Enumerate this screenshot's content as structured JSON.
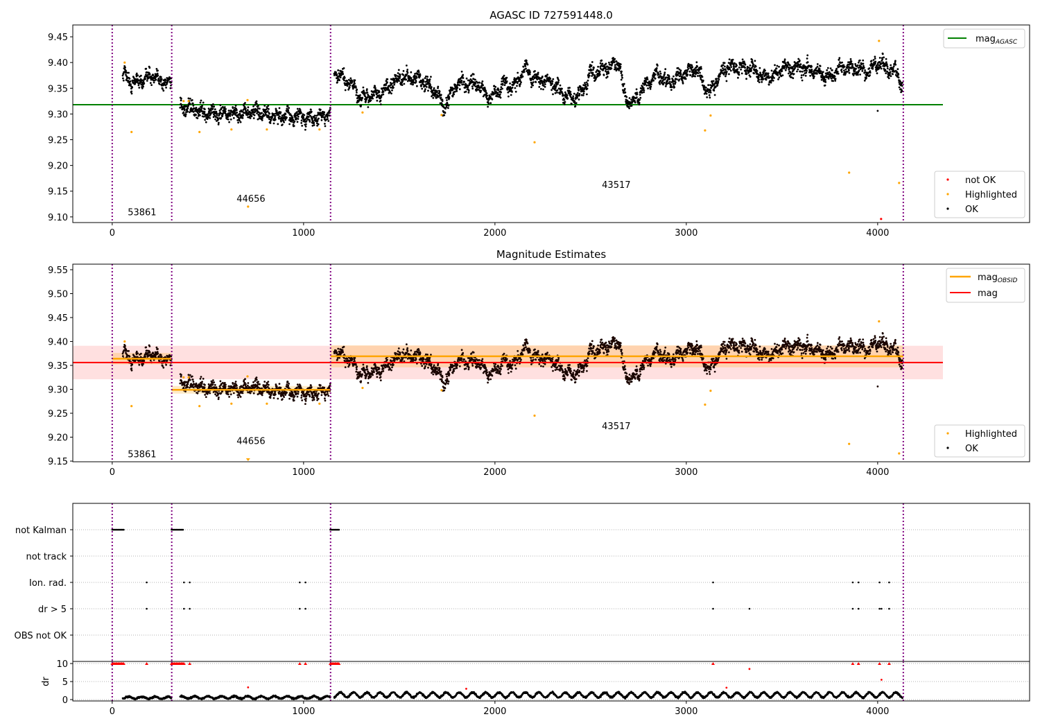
{
  "colors": {
    "ok": "#000000",
    "highlighted": "#ffa500",
    "not_ok": "#ff0000",
    "agasc": "#008000",
    "mag": "#ff0000",
    "mag_obsid": "#ffa500",
    "obsid_line": "#800080",
    "band_mag": "#ff000022",
    "band_obsid": "#ffa50040"
  },
  "chart_data": [
    {
      "type": "scatter",
      "title": "AGASC ID 727591448.0",
      "xlim": [
        -206,
        4794
      ],
      "ylim": [
        9.089,
        9.473
      ],
      "xticks": [
        "0",
        "1000",
        "2000",
        "3000",
        "4000"
      ],
      "yticks": [
        "9.10",
        "9.15",
        "9.20",
        "9.25",
        "9.30",
        "9.35",
        "9.40",
        "9.45"
      ],
      "legend_lines": [
        {
          "label": "mag",
          "sub": "AGASC"
        }
      ],
      "legend_points": [
        {
          "label": "not OK"
        },
        {
          "label": "Highlighted"
        },
        {
          "label": "OK"
        }
      ],
      "mag_agasc": 9.318,
      "mag_agasc_xrange": [
        -206,
        4341
      ],
      "obsid_boundaries": [
        0,
        311,
        1141,
        4134
      ],
      "obsid_labels": [
        {
          "text": "53861",
          "x": 156,
          "y": 9.11
        },
        {
          "text": "44656",
          "x": 725,
          "y": 9.136
        },
        {
          "text": "43517",
          "x": 2634,
          "y": 9.163
        }
      ],
      "ok_segments": [
        {
          "x0": 55,
          "x1": 310,
          "trend": [
            [
              55,
              9.38
            ],
            [
              100,
              9.36
            ],
            [
              150,
              9.365
            ],
            [
              200,
              9.375
            ],
            [
              250,
              9.365
            ],
            [
              310,
              9.36
            ]
          ]
        },
        {
          "x0": 355,
          "x1": 1140,
          "trend": [
            [
              355,
              9.315
            ],
            [
              450,
              9.305
            ],
            [
              550,
              9.3
            ],
            [
              650,
              9.3
            ],
            [
              750,
              9.305
            ],
            [
              850,
              9.295
            ],
            [
              950,
              9.295
            ],
            [
              1050,
              9.29
            ],
            [
              1140,
              9.3
            ]
          ]
        },
        {
          "x0": 1160,
          "x1": 4130,
          "trend": [
            [
              1160,
              9.38
            ],
            [
              1250,
              9.36
            ],
            [
              1300,
              9.33
            ],
            [
              1400,
              9.34
            ],
            [
              1500,
              9.37
            ],
            [
              1600,
              9.37
            ],
            [
              1700,
              9.34
            ],
            [
              1730,
              9.31
            ],
            [
              1800,
              9.36
            ],
            [
              1900,
              9.36
            ],
            [
              1980,
              9.33
            ],
            [
              2050,
              9.36
            ],
            [
              2100,
              9.35
            ],
            [
              2150,
              9.39
            ],
            [
              2200,
              9.37
            ],
            [
              2300,
              9.36
            ],
            [
              2350,
              9.34
            ],
            [
              2400,
              9.33
            ],
            [
              2450,
              9.34
            ],
            [
              2500,
              9.38
            ],
            [
              2600,
              9.39
            ],
            [
              2650,
              9.4
            ],
            [
              2680,
              9.33
            ],
            [
              2720,
              9.32
            ],
            [
              2800,
              9.36
            ],
            [
              2850,
              9.38
            ],
            [
              2900,
              9.36
            ],
            [
              3000,
              9.38
            ],
            [
              3050,
              9.39
            ],
            [
              3120,
              9.34
            ],
            [
              3150,
              9.36
            ],
            [
              3200,
              9.39
            ],
            [
              3300,
              9.39
            ],
            [
              3350,
              9.39
            ],
            [
              3400,
              9.37
            ],
            [
              3450,
              9.37
            ],
            [
              3500,
              9.39
            ],
            [
              3600,
              9.39
            ],
            [
              3700,
              9.38
            ],
            [
              3750,
              9.37
            ],
            [
              3800,
              9.39
            ],
            [
              3900,
              9.39
            ],
            [
              3950,
              9.38
            ],
            [
              4000,
              9.4
            ],
            [
              4050,
              9.39
            ],
            [
              4100,
              9.38
            ],
            [
              4130,
              9.35
            ]
          ]
        }
      ],
      "ok_outliers": [
        [
          4000,
          9.306
        ]
      ],
      "highlighted": [
        [
          65,
          9.4
        ],
        [
          101,
          9.265
        ],
        [
          373,
          9.325
        ],
        [
          399,
          9.325
        ],
        [
          456,
          9.265
        ],
        [
          623,
          9.27
        ],
        [
          707,
          9.327
        ],
        [
          710,
          9.12
        ],
        [
          808,
          9.27
        ],
        [
          1083,
          9.27
        ],
        [
          1308,
          9.303
        ],
        [
          1721,
          9.298
        ],
        [
          2207,
          9.245
        ],
        [
          3098,
          9.268
        ],
        [
          3127,
          9.297
        ],
        [
          3851,
          9.186
        ],
        [
          4007,
          9.442
        ],
        [
          4112,
          9.166
        ]
      ],
      "not_ok": [
        [
          4018,
          9.096
        ]
      ]
    },
    {
      "type": "scatter",
      "title": "Magnitude Estimates",
      "xlim": [
        -206,
        4794
      ],
      "ylim": [
        9.1486,
        9.5616
      ],
      "xticks": [
        "0",
        "1000",
        "2000",
        "3000",
        "4000"
      ],
      "yticks": [
        "9.15",
        "9.20",
        "9.25",
        "9.30",
        "9.35",
        "9.40",
        "9.45",
        "9.50",
        "9.55"
      ],
      "legend_lines": [
        {
          "label": "mag",
          "sub": "OBSID"
        },
        {
          "label": "mag",
          "sub": ""
        }
      ],
      "legend_points": [
        {
          "label": "Highlighted"
        },
        {
          "label": "OK"
        }
      ],
      "mag": 9.356,
      "mag_band": [
        9.321,
        9.391
      ],
      "mag_xrange": [
        -206,
        4341
      ],
      "obsid_mags": [
        {
          "x0": 0,
          "x1": 311,
          "mag": 9.364,
          "band": [
            9.352,
            9.376
          ]
        },
        {
          "x0": 311,
          "x1": 1141,
          "mag": 9.299,
          "band": [
            9.291,
            9.307
          ]
        },
        {
          "x0": 1141,
          "x1": 4134,
          "mag": 9.369,
          "band": [
            9.346,
            9.392
          ]
        }
      ],
      "obsid_labels": [
        {
          "text": "53861",
          "x": 156,
          "y": 9.165
        },
        {
          "text": "44656",
          "x": 725,
          "y": 9.193
        },
        {
          "text": "43517",
          "x": 2634,
          "y": 9.224
        }
      ]
    },
    {
      "type": "scatter",
      "title": "",
      "xlim": [
        -206,
        4794
      ],
      "xticks": [
        "0",
        "1000",
        "2000",
        "3000",
        "4000"
      ],
      "flag_categories": [
        "OBS not OK",
        "dr > 5",
        "Ion. rad.",
        "not track",
        "not Kalman"
      ],
      "flags": {
        "not Kalman": {
          "ranges": [
            [
              0,
              60
            ],
            [
              310,
              370
            ],
            [
              1140,
              1185
            ]
          ]
        },
        "not track": {
          "points": []
        },
        "Ion. rad.": {
          "points": [
            180,
            375,
            405,
            980,
            1010,
            3140,
            3870,
            3900,
            4010,
            4060
          ]
        },
        "dr > 5": {
          "points": [
            180,
            375,
            405,
            980,
            1010,
            3140,
            3330,
            3870,
            3900,
            4010,
            4020,
            4060
          ]
        },
        "OBS not OK": {
          "points": []
        }
      },
      "dr": {
        "ylabel": "dr",
        "ylim": [
          -0.38,
          10.58
        ],
        "yticks": [
          "0",
          "5",
          "10"
        ],
        "ok_segments": [
          {
            "x0": 55,
            "x1": 310,
            "level": 0.5,
            "amp": 0.3
          },
          {
            "x0": 355,
            "x1": 1140,
            "level": 0.6,
            "amp": 0.35
          },
          {
            "x0": 1160,
            "x1": 4130,
            "level": 1.3,
            "amp": 0.7
          }
        ],
        "not_ok_capped_ranges": [
          [
            0,
            60
          ],
          [
            310,
            370
          ],
          [
            1140,
            1185
          ]
        ],
        "not_ok_capped_points": [
          180,
          375,
          405,
          980,
          1010,
          3140,
          3870,
          3900,
          4010,
          4060
        ],
        "not_ok_points": [
          [
            710,
            3.4
          ],
          [
            1850,
            3.0
          ],
          [
            3210,
            3.3
          ],
          [
            3330,
            8.5
          ],
          [
            4020,
            5.5
          ]
        ]
      }
    }
  ]
}
